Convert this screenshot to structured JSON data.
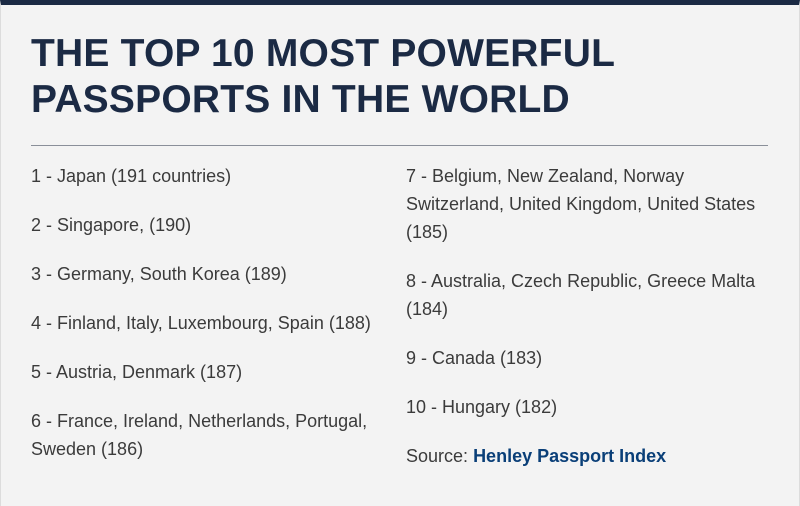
{
  "title": {
    "line1": "THE TOP 10 MOST POWERFUL",
    "line2": "PASSPORTS IN THE WORLD"
  },
  "rankings": [
    "1 - Japan (191 countries)",
    "2 - Singapore, (190)",
    "3 - Germany, South Korea (189)",
    "4 - Finland, Italy, Luxembourg, Spain (188)",
    "5 - Austria, Denmark (187)",
    "6 - France, Ireland, Netherlands, Portugal, Sweden (186)",
    "7 - Belgium, New Zealand, Norway Switzerland, United Kingdom, United States (185)",
    "8 - Australia, Czech Republic, Greece Malta (184)",
    "9 - Canada (183)",
    "10 - Hungary (182)"
  ],
  "source": {
    "label": "Source:",
    "link_text": "Henley Passport Index"
  },
  "colors": {
    "title": "#1b2a44",
    "body_text": "#3b3b3b",
    "link": "#0a3f78",
    "background": "#f3f3f3"
  }
}
